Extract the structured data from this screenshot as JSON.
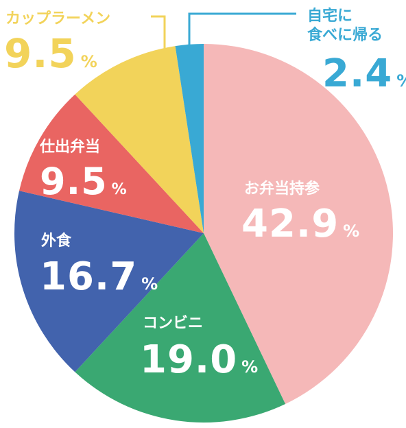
{
  "chart_data": {
    "type": "pie",
    "slices": [
      {
        "label": "お弁当持参",
        "value": 42.9,
        "display": "42.9",
        "unit": "%",
        "color": "#f5b8b8",
        "text_color": "#ffffff"
      },
      {
        "label": "コンビニ",
        "value": 19.0,
        "display": "19.0",
        "unit": "%",
        "color": "#3aa872",
        "text_color": "#ffffff"
      },
      {
        "label": "外食",
        "value": 16.7,
        "display": "16.7",
        "unit": "%",
        "color": "#4263ad",
        "text_color": "#ffffff"
      },
      {
        "label": "仕出弁当",
        "value": 9.5,
        "display": "9.5",
        "unit": "%",
        "color": "#e96562",
        "text_color": "#ffffff"
      },
      {
        "label": "カップラーメン",
        "value": 9.5,
        "display": "9.5",
        "unit": "%",
        "color": "#f2d35a",
        "text_color": "#f2d35a"
      },
      {
        "label": "自宅に食べに帰る",
        "label_lines": [
          "自宅に",
          "食べに帰る"
        ],
        "value": 2.4,
        "display": "2.4",
        "unit": "%",
        "color": "#39a9d4",
        "text_color": "#39a9d4"
      }
    ],
    "start": "top",
    "direction": "clockwise"
  }
}
